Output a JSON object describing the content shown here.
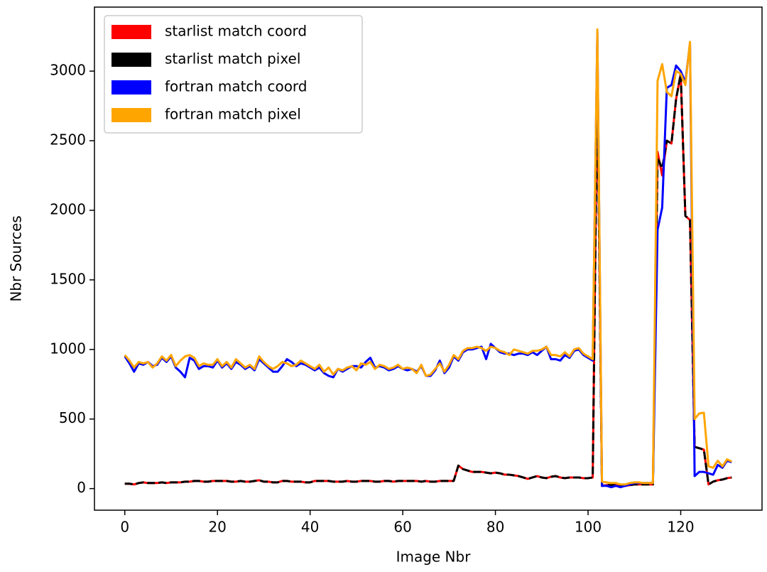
{
  "chart_data": {
    "type": "line",
    "xlabel": "Image Nbr",
    "ylabel": "Nbr Sources",
    "x": [
      0,
      1,
      2,
      3,
      4,
      5,
      6,
      7,
      8,
      9,
      10,
      11,
      12,
      13,
      14,
      15,
      16,
      17,
      18,
      19,
      20,
      21,
      22,
      23,
      24,
      25,
      26,
      27,
      28,
      29,
      30,
      31,
      32,
      33,
      34,
      35,
      36,
      37,
      38,
      39,
      40,
      41,
      42,
      43,
      44,
      45,
      46,
      47,
      48,
      49,
      50,
      51,
      52,
      53,
      54,
      55,
      56,
      57,
      58,
      59,
      60,
      61,
      62,
      63,
      64,
      65,
      66,
      67,
      68,
      69,
      70,
      71,
      72,
      73,
      74,
      75,
      76,
      77,
      78,
      79,
      80,
      81,
      82,
      83,
      84,
      85,
      86,
      87,
      88,
      89,
      90,
      91,
      92,
      93,
      94,
      95,
      96,
      97,
      98,
      99,
      100,
      101,
      102,
      103,
      104,
      105,
      106,
      107,
      108,
      109,
      110,
      111,
      112,
      113,
      114,
      115,
      116,
      117,
      118,
      119,
      120,
      121,
      122,
      123,
      124,
      125,
      126,
      127,
      128,
      129,
      130,
      131
    ],
    "series": [
      {
        "name": "starlist match coord",
        "color": "#ff0000",
        "dashed": false,
        "values": [
          35,
          35,
          30,
          40,
          45,
          40,
          40,
          40,
          45,
          40,
          45,
          45,
          45,
          50,
          50,
          55,
          55,
          50,
          50,
          55,
          55,
          55,
          55,
          50,
          50,
          55,
          50,
          50,
          55,
          60,
          50,
          50,
          45,
          45,
          55,
          55,
          50,
          50,
          50,
          45,
          45,
          55,
          55,
          55,
          55,
          50,
          50,
          50,
          55,
          50,
          50,
          55,
          55,
          55,
          50,
          50,
          55,
          55,
          50,
          55,
          55,
          55,
          55,
          55,
          50,
          55,
          50,
          50,
          55,
          55,
          55,
          55,
          165,
          140,
          130,
          120,
          120,
          120,
          115,
          110,
          115,
          110,
          100,
          100,
          95,
          90,
          80,
          70,
          80,
          90,
          80,
          75,
          85,
          90,
          80,
          75,
          80,
          80,
          80,
          75,
          75,
          80,
          2950,
          20,
          25,
          25,
          30,
          25,
          20,
          25,
          30,
          30,
          30,
          30,
          30,
          2420,
          2250,
          2500,
          2480,
          2800,
          2980,
          1960,
          1930,
          300,
          290,
          280,
          30,
          50,
          60,
          65,
          75,
          80
        ]
      },
      {
        "name": "starlist match pixel",
        "color": "#000000",
        "dashed": true,
        "values": [
          35,
          35,
          30,
          40,
          45,
          40,
          40,
          40,
          45,
          40,
          45,
          45,
          45,
          50,
          50,
          55,
          55,
          50,
          50,
          55,
          55,
          55,
          55,
          50,
          50,
          55,
          50,
          50,
          55,
          60,
          50,
          50,
          45,
          45,
          55,
          55,
          50,
          50,
          50,
          45,
          45,
          55,
          55,
          55,
          55,
          50,
          50,
          50,
          55,
          50,
          50,
          55,
          55,
          55,
          50,
          50,
          55,
          55,
          50,
          55,
          55,
          55,
          55,
          55,
          50,
          55,
          50,
          50,
          55,
          55,
          55,
          55,
          165,
          140,
          130,
          120,
          120,
          120,
          115,
          110,
          115,
          110,
          100,
          100,
          95,
          90,
          80,
          70,
          80,
          90,
          80,
          75,
          85,
          90,
          80,
          75,
          80,
          80,
          80,
          75,
          75,
          80,
          2900,
          20,
          25,
          25,
          30,
          25,
          20,
          25,
          30,
          30,
          30,
          30,
          30,
          2380,
          2300,
          2500,
          2480,
          2800,
          2980,
          1960,
          1930,
          300,
          290,
          280,
          30,
          50,
          60,
          65,
          75,
          80
        ]
      },
      {
        "name": "fortran match coord",
        "color": "#0000ff",
        "dashed": false,
        "values": [
          950,
          900,
          840,
          900,
          890,
          910,
          880,
          890,
          940,
          910,
          950,
          870,
          840,
          800,
          940,
          920,
          860,
          880,
          880,
          870,
          920,
          870,
          900,
          860,
          910,
          890,
          860,
          880,
          850,
          930,
          900,
          870,
          840,
          840,
          880,
          930,
          910,
          880,
          900,
          890,
          870,
          850,
          870,
          830,
          810,
          800,
          860,
          840,
          860,
          880,
          880,
          870,
          910,
          940,
          870,
          880,
          870,
          850,
          860,
          880,
          860,
          850,
          860,
          840,
          880,
          810,
          810,
          850,
          920,
          830,
          870,
          950,
          920,
          980,
          1000,
          1000,
          1010,
          1020,
          930,
          1040,
          1010,
          980,
          970,
          970,
          960,
          970,
          970,
          960,
          980,
          960,
          990,
          1020,
          930,
          930,
          920,
          960,
          940,
          990,
          1000,
          960,
          940,
          920,
          3280,
          20,
          20,
          10,
          20,
          10,
          20,
          30,
          40,
          40,
          40,
          40,
          40,
          1860,
          2020,
          2880,
          2900,
          3040,
          3000,
          2920,
          3200,
          90,
          120,
          120,
          110,
          100,
          170,
          150,
          200,
          190
        ]
      },
      {
        "name": "fortran match pixel",
        "color": "#ffa500",
        "dashed": false,
        "values": [
          960,
          920,
          870,
          910,
          900,
          910,
          870,
          900,
          950,
          920,
          960,
          880,
          920,
          950,
          960,
          940,
          880,
          900,
          890,
          890,
          930,
          880,
          910,
          870,
          930,
          900,
          870,
          890,
          860,
          950,
          910,
          880,
          860,
          880,
          910,
          900,
          880,
          890,
          920,
          900,
          880,
          860,
          890,
          840,
          870,
          820,
          860,
          850,
          870,
          880,
          850,
          900,
          890,
          910,
          860,
          890,
          880,
          860,
          870,
          890,
          860,
          870,
          860,
          830,
          890,
          810,
          820,
          860,
          900,
          840,
          890,
          960,
          930,
          990,
          1010,
          1010,
          1020,
          1010,
          990,
          1020,
          1010,
          990,
          980,
          960,
          1000,
          990,
          980,
          970,
          990,
          990,
          1000,
          1020,
          960,
          960,
          950,
          980,
          950,
          1000,
          1010,
          970,
          950,
          930,
          3300,
          50,
          45,
          40,
          40,
          30,
          30,
          40,
          45,
          45,
          40,
          40,
          40,
          2930,
          3050,
          2850,
          2820,
          3000,
          2980,
          2900,
          3210,
          500,
          540,
          545,
          160,
          150,
          200,
          160,
          210,
          195
        ]
      }
    ],
    "xlim": [
      -6.55,
      137.55
    ],
    "xticks": [
      0,
      20,
      40,
      60,
      80,
      100,
      120
    ],
    "ylim": [
      -155,
      3460
    ],
    "yticks": [
      0,
      500,
      1000,
      1500,
      2000,
      2500,
      3000
    ],
    "legend": "upper left",
    "grid": false
  }
}
